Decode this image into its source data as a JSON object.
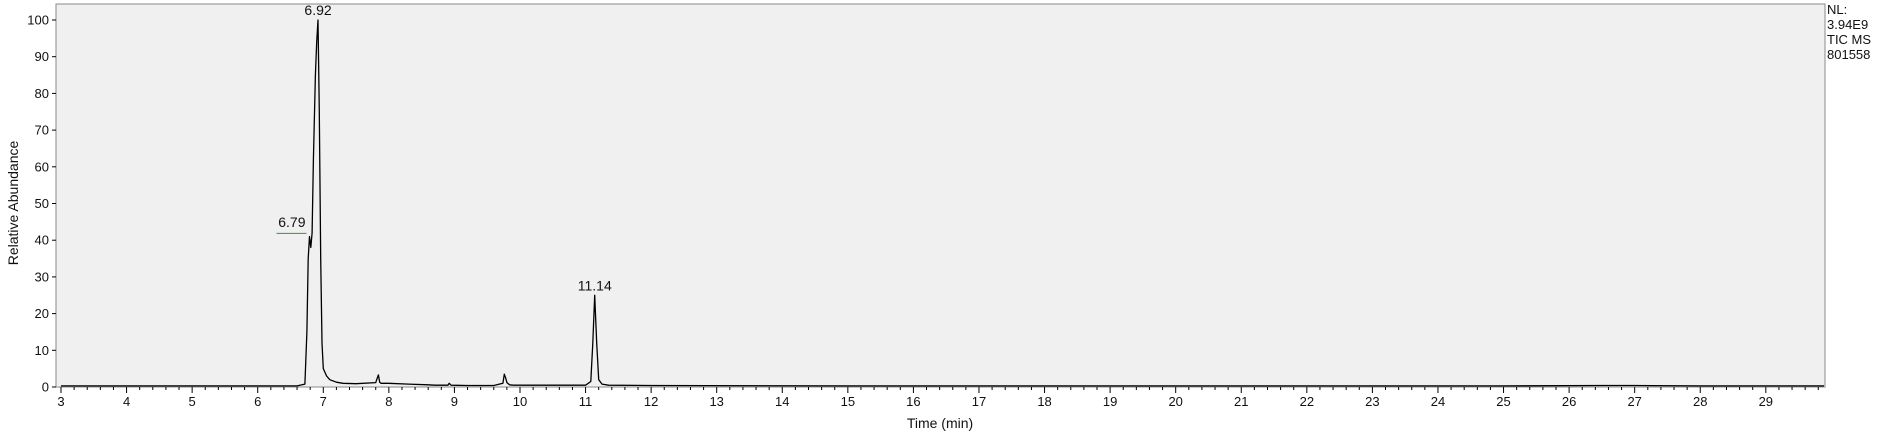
{
  "chart_data": {
    "type": "line",
    "title": "",
    "xlabel": "Time (min)",
    "ylabel": "Relative Abundance",
    "xlim": [
      3,
      30
    ],
    "ylim": [
      0,
      100
    ],
    "x_ticks": [
      3,
      4,
      5,
      6,
      7,
      8,
      9,
      10,
      11,
      12,
      13,
      14,
      15,
      16,
      17,
      18,
      19,
      20,
      21,
      22,
      23,
      24,
      25,
      26,
      27,
      28,
      29
    ],
    "y_ticks": [
      0,
      10,
      20,
      30,
      40,
      50,
      60,
      70,
      80,
      90,
      100
    ],
    "grid": false,
    "info_lines": [
      "NL:",
      "3.94E9",
      "TIC  MS",
      "801558"
    ],
    "peak_labels": [
      {
        "text": "6.92",
        "x": 6.92,
        "y": 100
      },
      {
        "text": "6.79",
        "x": 6.79,
        "y": 42
      },
      {
        "text": "11.14",
        "x": 11.14,
        "y": 25
      }
    ],
    "series": [
      {
        "x": [
          3.0,
          4.0,
          5.0,
          6.0,
          6.6,
          6.72,
          6.75,
          6.77,
          6.79,
          6.81,
          6.83,
          6.85,
          6.88,
          6.9,
          6.92,
          6.94,
          6.96,
          6.98,
          7.0,
          7.05,
          7.1,
          7.2,
          7.3,
          7.5,
          7.8,
          7.84,
          7.86,
          7.88,
          8.0,
          8.3,
          8.6,
          8.7,
          8.9,
          8.92,
          8.95,
          9.2,
          9.6,
          9.74,
          9.76,
          9.78,
          9.8,
          9.84,
          9.9,
          10.5,
          11.0,
          11.08,
          11.11,
          11.14,
          11.17,
          11.2,
          11.25,
          11.35,
          12.0,
          15.0,
          20.0,
          25.0,
          26.5,
          27.0,
          28.0,
          29.0,
          30.0
        ],
        "y": [
          0.3,
          0.3,
          0.3,
          0.3,
          0.3,
          0.8,
          15,
          35,
          41,
          38,
          42,
          62,
          85,
          94,
          100,
          75,
          35,
          12,
          5,
          3,
          2,
          1.3,
          1.0,
          0.9,
          1.2,
          3.3,
          1.3,
          1.0,
          1.0,
          0.8,
          0.6,
          0.5,
          0.5,
          1.0,
          0.5,
          0.4,
          0.4,
          1.0,
          3.5,
          2.5,
          1.2,
          0.6,
          0.5,
          0.5,
          0.5,
          1.5,
          12,
          25,
          12,
          2,
          0.8,
          0.5,
          0.4,
          0.3,
          0.3,
          0.3,
          0.4,
          0.4,
          0.3,
          0.3,
          0.3
        ]
      }
    ]
  }
}
